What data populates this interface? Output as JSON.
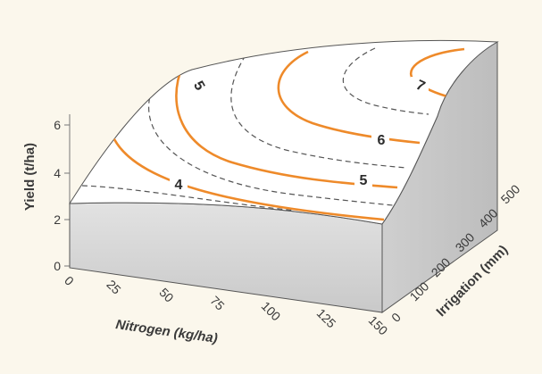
{
  "chart_data": {
    "type": "surface-3d",
    "xlabel": "Nitrogen (kg/ha)",
    "ylabel": "Irrigation (mm)",
    "zlabel": "Yield (t/ha)",
    "x_ticks": [
      "0",
      "25",
      "50",
      "75",
      "100",
      "125",
      "150"
    ],
    "y_ticks": [
      "0",
      "100",
      "200",
      "300",
      "400",
      "500"
    ],
    "z_ticks": [
      "0",
      "2",
      "4",
      "6"
    ],
    "xlim": [
      0,
      150
    ],
    "ylim": [
      0,
      500
    ],
    "zlim": [
      0,
      6.5
    ],
    "contour_labels": [
      "4",
      "5",
      "5",
      "6",
      "7"
    ],
    "colors": {
      "background": "#fbf7ec",
      "labeled_contour": "#ee8a2a",
      "intermediate_contour": "#555555",
      "surface_top": "#ffffff",
      "surface_side": "#cfcfcf"
    }
  }
}
